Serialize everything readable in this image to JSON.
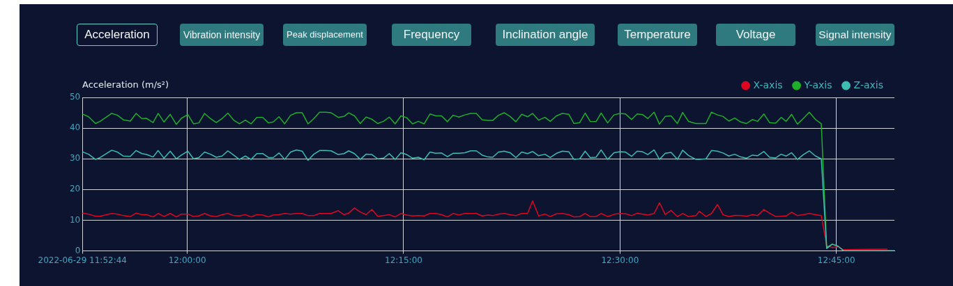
{
  "chart_data": {
    "type": "line",
    "annotations": [
      "Acceleration",
      "Vibration intensity",
      "Peak displacement",
      "Frequency",
      "Inclination angle",
      "Temperature",
      "Voltage",
      "Signal intensity"
    ],
    "ylabel": "Acceleration (m/s²)",
    "x": [
      11.8789,
      11.8859,
      11.894,
      11.8993,
      11.9127,
      11.9194,
      11.9262,
      11.9342,
      11.9409,
      11.9476,
      11.953,
      11.9605,
      11.9664,
      11.9731,
      11.9803,
      11.9874,
      11.9932,
      12.0007,
      12.0072,
      12.0134,
      12.02,
      12.0268,
      12.0335,
      12.0402,
      12.0469,
      12.0536,
      12.0603,
      12.0671,
      12.0737,
      12.0804,
      12.0872,
      12.0939,
      12.0993,
      12.106,
      12.1126,
      12.1194,
      12.1261,
      12.1328,
      12.1395,
      12.1462,
      12.1529,
      12.1597,
      12.1663,
      12.1744,
      12.1811,
      12.1865,
      12.1932,
      12.1999,
      12.2066,
      12.2133,
      12.22,
      12.2267,
      12.2334,
      12.2402,
      12.2469,
      12.2535,
      12.2603,
      12.267,
      12.2737,
      12.2804,
      12.2871,
      12.2938,
      12.3006,
      12.3072,
      12.3139,
      12.3207,
      12.3274,
      12.334,
      12.3408,
      12.3475,
      12.3529,
      12.3596,
      12.3663,
      12.373,
      12.3797,
      12.3864,
      12.3932,
      12.399,
      12.406,
      12.4133,
      12.4194,
      12.4266,
      12.4334,
      12.4409,
      12.4468,
      12.4535,
      12.4597,
      12.4656,
      12.4723,
      12.4782,
      12.4857,
      12.493,
      12.4999,
      12.5064,
      12.5134,
      12.5198,
      12.526,
      12.5321,
      12.5394,
      12.5456,
      12.5523,
      12.559,
      12.5663,
      12.5724,
      12.5791,
      12.5877,
      12.5917,
      12.5993,
      12.6057,
      12.6126,
      12.6191,
      12.6258,
      12.6325,
      12.6395,
      12.6462,
      12.6529,
      12.6589,
      12.6663,
      12.6728,
      12.6798,
      12.6862,
      12.6919,
      12.6983,
      12.705,
      12.712,
      12.7187,
      12.7259,
      12.7326,
      12.7388,
      12.7452,
      12.7522,
      12.7581,
      12.8091,
      12.8171
    ],
    "series": [
      {
        "name": "X-axis",
        "color": "#e0061f",
        "values": [
          12.3,
          12,
          11.3,
          11.3,
          12.2,
          12,
          11.5,
          11.2,
          12.3,
          11.8,
          11.8,
          11.1,
          12.2,
          11.2,
          12.2,
          11.1,
          12,
          12,
          11.2,
          11.4,
          12.2,
          11.4,
          11.2,
          11.8,
          12.2,
          11.5,
          11.4,
          11.8,
          11.1,
          11.8,
          11.7,
          11.1,
          11.7,
          11.8,
          12.2,
          12,
          12.2,
          12.2,
          11.5,
          11.5,
          12.2,
          12.2,
          12.2,
          13.1,
          11.8,
          12.3,
          14,
          12.7,
          11.8,
          13.5,
          11.3,
          11.5,
          11.8,
          11.1,
          12.2,
          11.7,
          11.4,
          11.5,
          11.4,
          12.2,
          12.2,
          11.8,
          11.1,
          12.2,
          11.7,
          12.2,
          12.2,
          12.2,
          11.4,
          11.7,
          11.5,
          12,
          12.2,
          11.8,
          11.5,
          12.2,
          12.2,
          16.3,
          11.4,
          12,
          11.2,
          12.1,
          12.2,
          11.8,
          11.1,
          11.2,
          12.2,
          11.2,
          11.2,
          12.2,
          11.2,
          11.9,
          12.2,
          12.1,
          11.5,
          12.3,
          12,
          11.7,
          12.2,
          15.7,
          11.9,
          13.2,
          11.2,
          12.2,
          11.2,
          11.5,
          12.9,
          11.2,
          12.2,
          15.1,
          11.8,
          11.2,
          11.6,
          11.5,
          11.3,
          11.8,
          11.5,
          13.5,
          12.3,
          11.2,
          11.3,
          11.4,
          12.6,
          11.5,
          11.8,
          12.2,
          11.8,
          11.5,
          1.7,
          1.1,
          1.4,
          0.4,
          0.6,
          null
        ]
      },
      {
        "name": "Y-axis",
        "color": "#1fae2a",
        "values": [
          44.6,
          43.7,
          41.5,
          42.2,
          44.8,
          44.2,
          42.7,
          42.3,
          44.8,
          43.1,
          43.2,
          41.8,
          44.8,
          42,
          44.5,
          41.2,
          43.2,
          44.4,
          41.4,
          41.7,
          44.8,
          43.1,
          41.8,
          43.1,
          44.9,
          42.6,
          41.4,
          42.6,
          41.4,
          43.5,
          43.5,
          41.7,
          42,
          43.7,
          41.4,
          44.2,
          45,
          45,
          41.4,
          43.1,
          45.2,
          45.2,
          45,
          43.5,
          43.8,
          45,
          44,
          41.5,
          43.6,
          42.9,
          41.5,
          42.2,
          43.6,
          41.4,
          44,
          43.4,
          41.4,
          42.2,
          41.4,
          44.6,
          44,
          44,
          42.1,
          44.2,
          43.6,
          44.3,
          44.8,
          44.8,
          42.7,
          42.5,
          42.5,
          44.2,
          45,
          43.8,
          42.1,
          44.5,
          43.7,
          44.8,
          42.6,
          43.5,
          42.2,
          44,
          44.8,
          44.5,
          41.5,
          41.8,
          44.9,
          42.2,
          42.1,
          44.9,
          41.7,
          44.3,
          44.8,
          44.6,
          42.8,
          44.6,
          44.4,
          43.1,
          45.2,
          41.3,
          43.8,
          44,
          41.5,
          45.1,
          42.2,
          41.5,
          41.5,
          41.5,
          45.2,
          44.3,
          43.8,
          42.3,
          43.3,
          42,
          41.5,
          42.8,
          42.2,
          44.6,
          41.8,
          41.6,
          43.5,
          42.2,
          44.5,
          41.3,
          43.2,
          45.2,
          42.8,
          41.4,
          1.1,
          2.2,
          1.5,
          null,
          null,
          null
        ]
      },
      {
        "name": "Z-axis",
        "color": "#3cbdb1",
        "values": [
          32.3,
          31.5,
          29.8,
          30.4,
          32.8,
          32.2,
          30.9,
          30.8,
          32.7,
          31.7,
          31.4,
          30.6,
          32.7,
          30.2,
          32.5,
          30,
          31.2,
          32.5,
          30,
          30.4,
          32.2,
          31.5,
          30.5,
          30.9,
          32.6,
          31.2,
          29.8,
          30.9,
          29.8,
          31.7,
          31.7,
          30.4,
          30.4,
          31.9,
          29.8,
          32.2,
          32.9,
          32.5,
          29.5,
          31.5,
          32.7,
          32.7,
          32.6,
          31.4,
          31.7,
          32.6,
          31.7,
          29.8,
          31.5,
          31.4,
          30,
          30.2,
          31.7,
          29.8,
          32,
          31.4,
          30.2,
          30.5,
          29.7,
          32.2,
          31.8,
          31.9,
          30.7,
          31.8,
          31.8,
          32,
          32.6,
          32.6,
          31.2,
          30.6,
          30.5,
          32.2,
          32.5,
          32,
          30.4,
          32.2,
          31.7,
          32.4,
          31,
          31.5,
          30.4,
          31.8,
          32.5,
          32.3,
          29.8,
          30,
          32.5,
          30.4,
          30.5,
          32.9,
          29.8,
          32,
          32.3,
          32.2,
          30.8,
          32.5,
          32.3,
          31.4,
          32.9,
          29.8,
          31.8,
          32.1,
          29.8,
          32.8,
          31.1,
          29.8,
          29.8,
          30,
          32.7,
          32.5,
          31.9,
          30.9,
          31.5,
          30.6,
          30.2,
          31.2,
          31,
          32.4,
          30.5,
          30.3,
          31.5,
          30.9,
          32,
          29.8,
          31.4,
          32.6,
          30.9,
          30,
          0.8,
          2.2,
          1.5,
          0.1,
          0.1,
          0.1
        ]
      }
    ],
    "xlim": [
      11.8789,
      12.8171
    ],
    "xticks": [
      {
        "value": 11.8789,
        "label": "2022-06-29 11:52:44"
      },
      {
        "value": 12,
        "label": "12:00:00"
      },
      {
        "value": 12.25,
        "label": "12:15:00"
      },
      {
        "value": 12.5,
        "label": "12:30:00"
      },
      {
        "value": 12.75,
        "label": "12:45:00"
      }
    ],
    "ylim": [
      0,
      50
    ],
    "yticks": [
      0,
      10,
      20,
      30,
      40,
      50
    ],
    "grid": true,
    "legend": "top right",
    "marker": "none",
    "line_style": "solid"
  }
}
